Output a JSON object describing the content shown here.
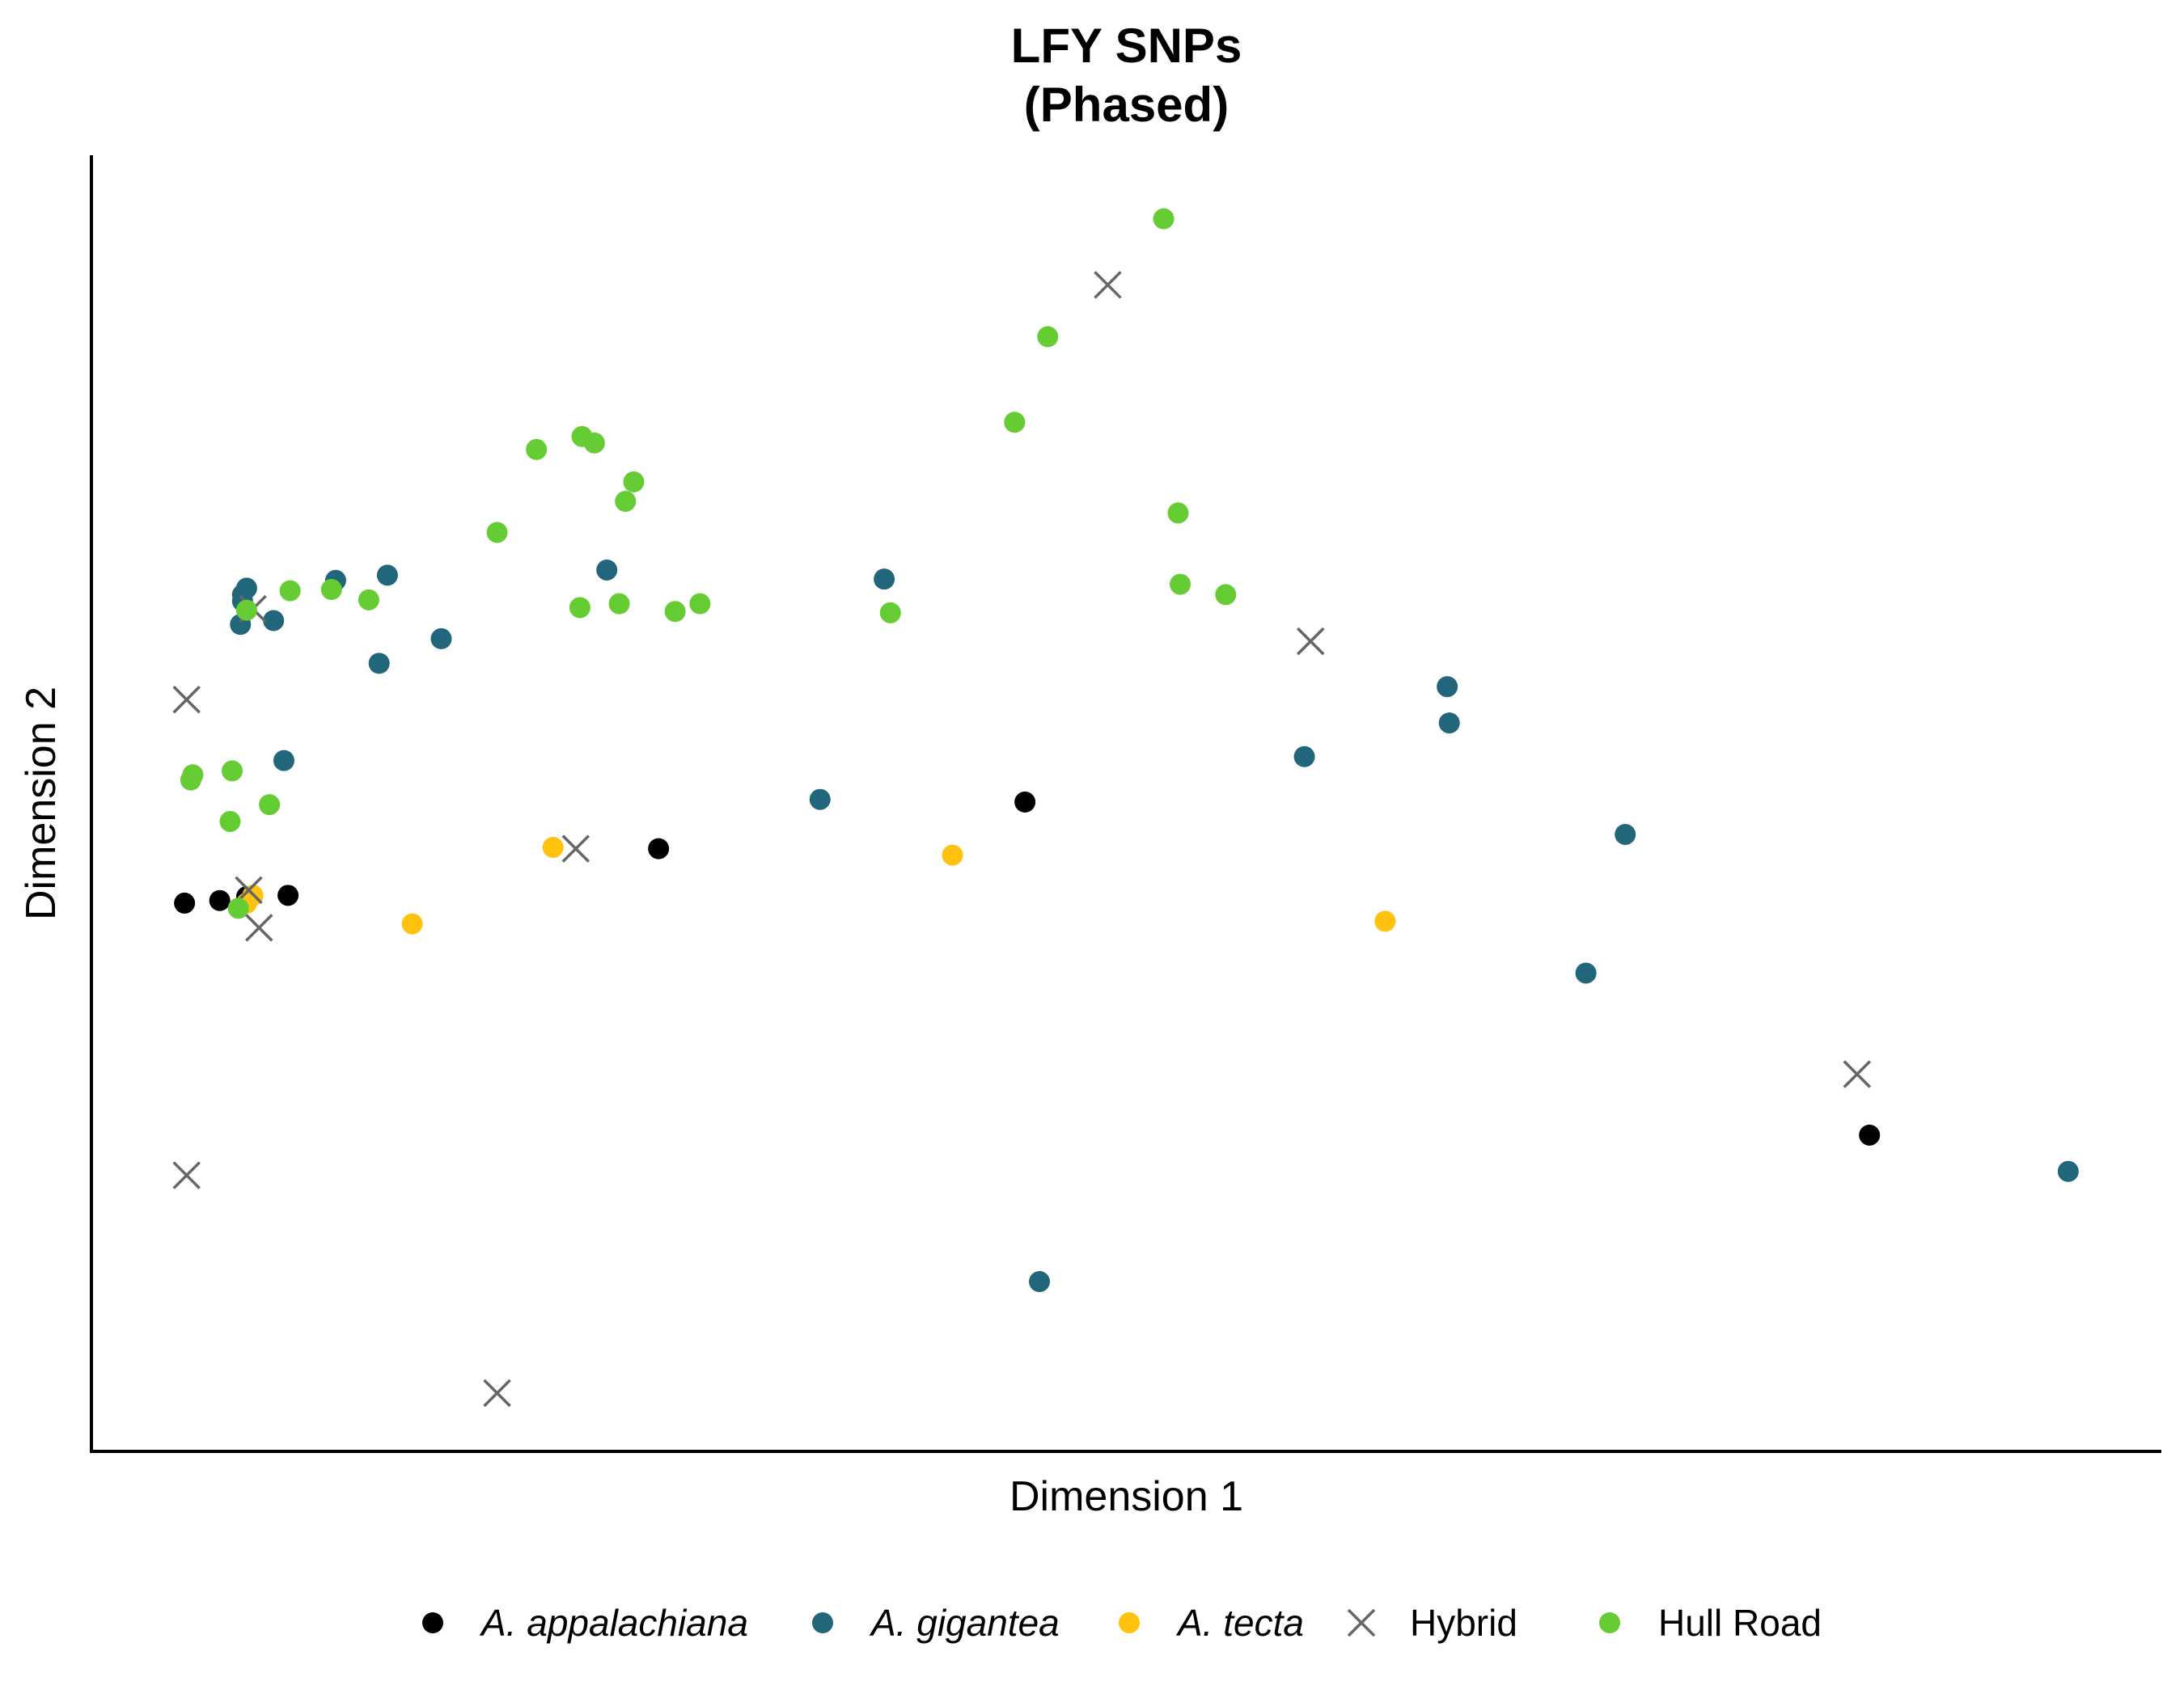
{
  "chart_data": {
    "type": "scatter",
    "title": [
      "LFY SNPs",
      "(Phased)"
    ],
    "xlabel": "Dimension 1",
    "ylabel": "Dimension 2",
    "xlim": [
      0,
      100
    ],
    "ylim": [
      0,
      100
    ],
    "grid": false,
    "legend_placement": "bottom",
    "series": [
      {
        "name": "A. appalachiana",
        "italic": true,
        "marker": "circle",
        "color": "#000000",
        "points": [
          [
            4.5,
            42.3
          ],
          [
            6.2,
            42.5
          ],
          [
            7.5,
            42.8
          ],
          [
            9.5,
            42.9
          ],
          [
            27.4,
            46.5
          ],
          [
            45.1,
            50.1
          ],
          [
            85.9,
            24.4
          ]
        ]
      },
      {
        "name": "A. gigantea",
        "italic": true,
        "marker": "circle",
        "color": "#21667a",
        "points": [
          [
            7.3,
            66.1
          ],
          [
            7.5,
            66.6
          ],
          [
            7.3,
            65.6
          ],
          [
            7.2,
            63.8
          ],
          [
            8.8,
            64.1
          ],
          [
            11.8,
            67.2
          ],
          [
            14.3,
            67.6
          ],
          [
            13.9,
            60.8
          ],
          [
            16.9,
            62.7
          ],
          [
            9.3,
            53.3
          ],
          [
            24.9,
            68.0
          ],
          [
            38.3,
            67.3
          ],
          [
            35.2,
            50.3
          ],
          [
            58.6,
            53.6
          ],
          [
            65.6,
            56.2
          ],
          [
            65.5,
            59.0
          ],
          [
            74.1,
            47.6
          ],
          [
            72.2,
            36.9
          ],
          [
            95.5,
            21.6
          ],
          [
            45.8,
            13.1
          ]
        ]
      },
      {
        "name": "A. tecta",
        "italic": true,
        "marker": "circle",
        "color": "#ffc20e",
        "points": [
          [
            7.5,
            42.3
          ],
          [
            7.8,
            42.9
          ],
          [
            15.5,
            40.7
          ],
          [
            22.3,
            46.6
          ],
          [
            41.6,
            46.0
          ],
          [
            62.5,
            40.9
          ]
        ]
      },
      {
        "name": "Hybrid",
        "italic": false,
        "marker": "x",
        "color": "#666666",
        "points": [
          [
            4.6,
            58.0
          ],
          [
            7.6,
            43.3
          ],
          [
            8.1,
            40.4
          ],
          [
            7.8,
            65.0
          ],
          [
            23.4,
            46.5
          ],
          [
            49.1,
            90.0
          ],
          [
            58.9,
            62.5
          ],
          [
            85.3,
            29.1
          ],
          [
            4.6,
            21.3
          ],
          [
            19.6,
            4.5
          ]
        ]
      },
      {
        "name": "Hull Road",
        "italic": false,
        "marker": "circle",
        "color": "#66cc33",
        "points": [
          [
            4.9,
            52.2
          ],
          [
            4.8,
            51.8
          ],
          [
            6.8,
            52.5
          ],
          [
            8.6,
            49.9
          ],
          [
            6.7,
            48.6
          ],
          [
            7.1,
            41.9
          ],
          [
            7.5,
            64.9
          ],
          [
            9.6,
            66.4
          ],
          [
            11.6,
            66.5
          ],
          [
            13.4,
            65.7
          ],
          [
            19.6,
            70.9
          ],
          [
            21.5,
            77.3
          ],
          [
            23.7,
            78.3
          ],
          [
            24.3,
            77.8
          ],
          [
            25.8,
            73.3
          ],
          [
            26.2,
            74.8
          ],
          [
            23.6,
            65.1
          ],
          [
            25.5,
            65.4
          ],
          [
            28.2,
            64.8
          ],
          [
            29.4,
            65.4
          ],
          [
            38.6,
            64.7
          ],
          [
            44.6,
            79.4
          ],
          [
            46.2,
            86.0
          ],
          [
            51.8,
            95.1
          ],
          [
            52.5,
            72.4
          ],
          [
            52.6,
            66.9
          ],
          [
            54.8,
            66.1
          ]
        ]
      }
    ]
  }
}
